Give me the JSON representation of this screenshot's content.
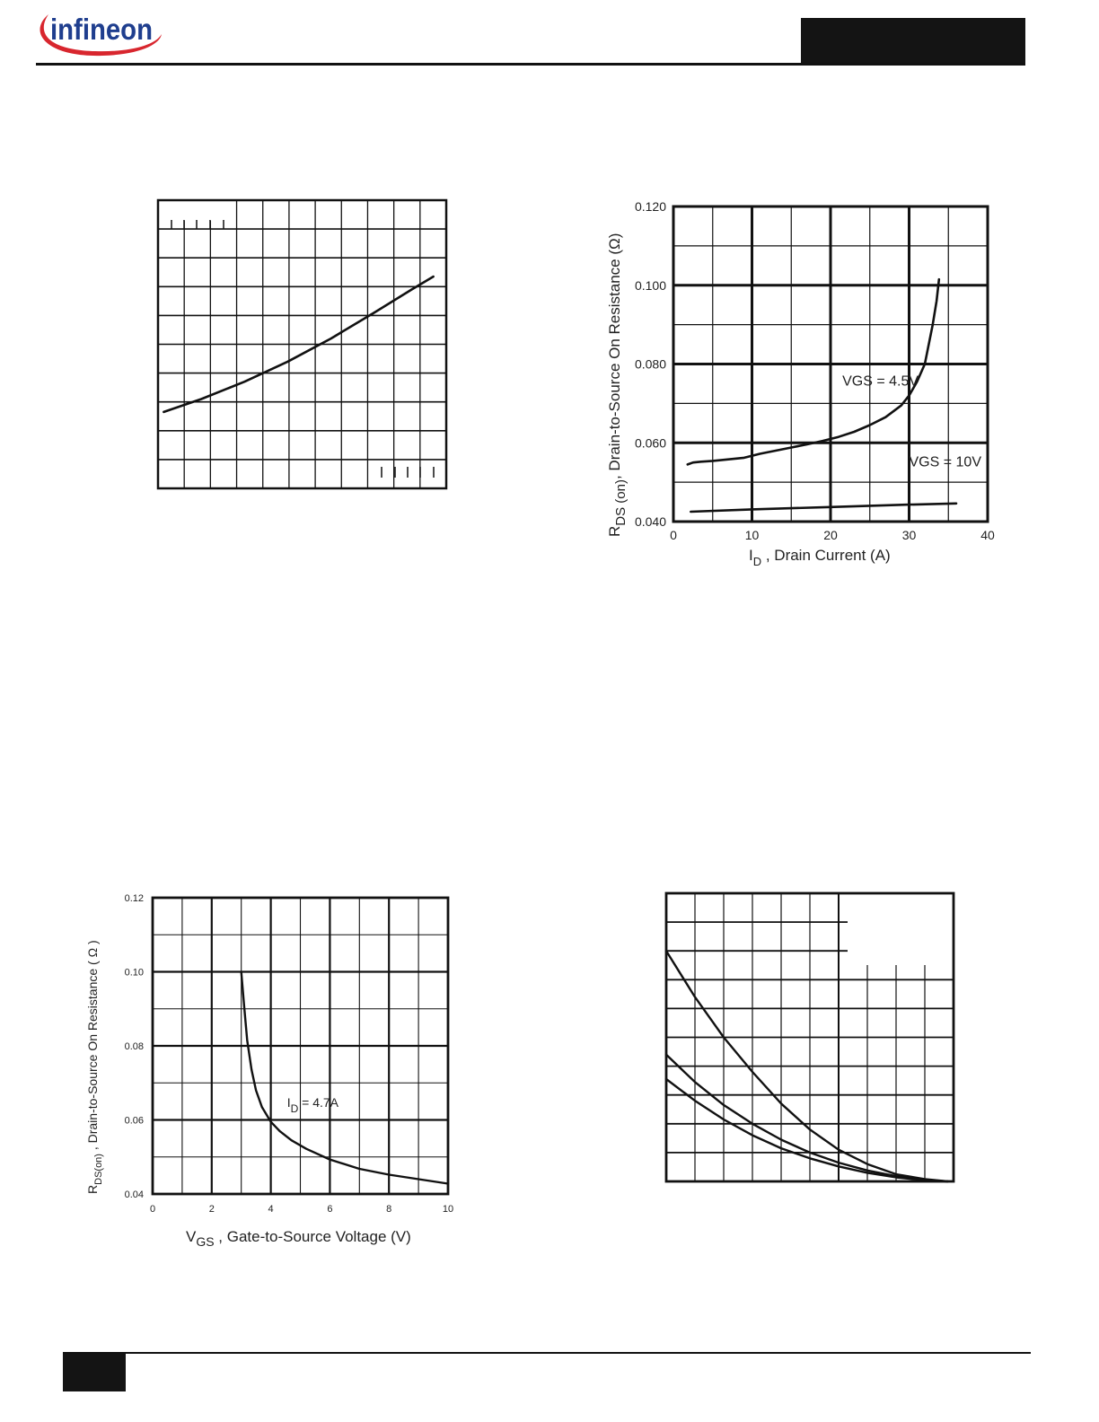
{
  "header": {
    "brand": "infineon",
    "brand_color": "#1f3e8e",
    "swoosh_color": "#d8262e"
  },
  "chart_data": [
    {
      "id": "chart-top-left",
      "type": "line",
      "title": "",
      "xlabel": "",
      "ylabel": "",
      "grid": true,
      "x_tick_labels_shown": false,
      "y_tick_labels_shown": false,
      "xlim": [
        0,
        1
      ],
      "ylim": [
        0,
        1
      ],
      "series": [
        {
          "x": [
            0.02,
            0.15,
            0.3,
            0.45,
            0.6,
            0.75,
            0.88,
            0.955
          ],
          "y": [
            0.265,
            0.31,
            0.37,
            0.44,
            0.52,
            0.61,
            0.69,
            0.735
          ]
        }
      ]
    },
    {
      "id": "chart-top-right",
      "type": "line",
      "title": "",
      "xlabel": "I_D , Drain Current (A)",
      "xlabel_main": "I",
      "xlabel_sub": "D",
      "xlabel_rest": " , Drain Current (A)",
      "ylabel": "R DS (on), Drain-to-Source On Resistance (Ω)",
      "ylabel_main": "R",
      "ylabel_sub": "DS (on)",
      "ylabel_rest": ", Drain-to-Source On Resistance (Ω)",
      "xlim": [
        0,
        40
      ],
      "ylim": [
        0.04,
        0.12
      ],
      "x_ticks": [
        0,
        10,
        20,
        30,
        40
      ],
      "x_tick_labels": [
        "0",
        "10",
        "20",
        "30",
        "40"
      ],
      "y_ticks": [
        0.04,
        0.06,
        0.08,
        0.1,
        0.12
      ],
      "y_tick_labels": [
        "0.040",
        "0.060",
        "0.080",
        "0.100",
        "0.120"
      ],
      "grid": true,
      "annotations": [
        {
          "text": "VGS = 4.5V",
          "x": 21.5,
          "y": 0.0745
        },
        {
          "text": "VGS = 10V",
          "x": 30,
          "y": 0.054
        }
      ],
      "series": [
        {
          "label": "VGS = 4.5V",
          "x": [
            1.8,
            2.5,
            3.5,
            5,
            7,
            9,
            11,
            13,
            15,
            17,
            19,
            21,
            23,
            25,
            27,
            29,
            30,
            31,
            32,
            33,
            33.5,
            33.8
          ],
          "y": [
            0.0545,
            0.055,
            0.0552,
            0.0554,
            0.0558,
            0.0562,
            0.0572,
            0.058,
            0.0588,
            0.0596,
            0.0605,
            0.0615,
            0.0628,
            0.0645,
            0.0665,
            0.0695,
            0.072,
            0.0755,
            0.08,
            0.09,
            0.096,
            0.1015
          ]
        },
        {
          "label": "VGS = 10V",
          "x": [
            2.2,
            10,
            20,
            30,
            36
          ],
          "y": [
            0.0425,
            0.0431,
            0.0437,
            0.0443,
            0.0446
          ]
        }
      ]
    },
    {
      "id": "chart-bottom-left",
      "type": "line",
      "title": "",
      "xlabel": "V_GS , Gate-to-Source Voltage (V)",
      "xlabel_main": "V",
      "xlabel_sub": "GS",
      "xlabel_rest": " , Gate-to-Source Voltage (V)",
      "ylabel": "R DS(on) , Drain-to-Source On Resistance ( Ω )",
      "ylabel_main": "R",
      "ylabel_sub": "DS(on)",
      "ylabel_rest": " , Drain-to-Source On Resistance ( Ω )",
      "xlim": [
        0,
        10
      ],
      "ylim": [
        0.04,
        0.12
      ],
      "x_ticks": [
        0,
        2,
        4,
        6,
        8,
        10
      ],
      "x_tick_labels": [
        "0",
        "2",
        "4",
        "6",
        "8",
        "10"
      ],
      "y_ticks": [
        0.04,
        0.06,
        0.08,
        0.1,
        0.12
      ],
      "y_tick_labels": [
        "0.04",
        "0.06",
        "0.08",
        "0.10",
        "0.12"
      ],
      "grid": true,
      "annotations": [
        {
          "text": "I D = 4.7A",
          "main": "I",
          "sub": "D",
          "rest": " = 4.7A",
          "x": 4.55,
          "y": 0.0635
        }
      ],
      "series": [
        {
          "label": "I D = 4.7A",
          "x": [
            3.0,
            3.1,
            3.2,
            3.35,
            3.5,
            3.7,
            4.0,
            4.3,
            4.7,
            5.2,
            6.0,
            7.0,
            8.0,
            9.0,
            10.0
          ],
          "y": [
            0.1,
            0.0905,
            0.0815,
            0.0735,
            0.068,
            0.0635,
            0.0595,
            0.057,
            0.0545,
            0.0522,
            0.0493,
            0.0468,
            0.0452,
            0.044,
            0.0428
          ]
        }
      ]
    },
    {
      "id": "chart-bottom-right",
      "type": "line",
      "title": "",
      "xlabel": "",
      "ylabel": "",
      "grid": true,
      "x_tick_labels_shown": false,
      "y_tick_labels_shown": false,
      "xlim": [
        0,
        1
      ],
      "ylim": [
        0,
        1
      ],
      "series": [
        {
          "x": [
            0.0,
            0.1,
            0.2,
            0.3,
            0.4,
            0.5,
            0.6,
            0.7,
            0.8,
            0.9,
            0.98
          ],
          "y": [
            0.8,
            0.64,
            0.5,
            0.38,
            0.27,
            0.18,
            0.11,
            0.06,
            0.025,
            0.008,
            0.0
          ]
        },
        {
          "x": [
            0.0,
            0.1,
            0.2,
            0.3,
            0.4,
            0.5,
            0.6,
            0.7,
            0.8,
            0.9,
            0.98
          ],
          "y": [
            0.44,
            0.345,
            0.265,
            0.2,
            0.145,
            0.1,
            0.065,
            0.038,
            0.018,
            0.005,
            0.0
          ]
        },
        {
          "x": [
            0.0,
            0.1,
            0.2,
            0.3,
            0.4,
            0.5,
            0.6,
            0.7,
            0.8,
            0.9,
            0.98
          ],
          "y": [
            0.355,
            0.28,
            0.215,
            0.16,
            0.115,
            0.08,
            0.052,
            0.03,
            0.014,
            0.004,
            0.0
          ]
        }
      ]
    }
  ]
}
